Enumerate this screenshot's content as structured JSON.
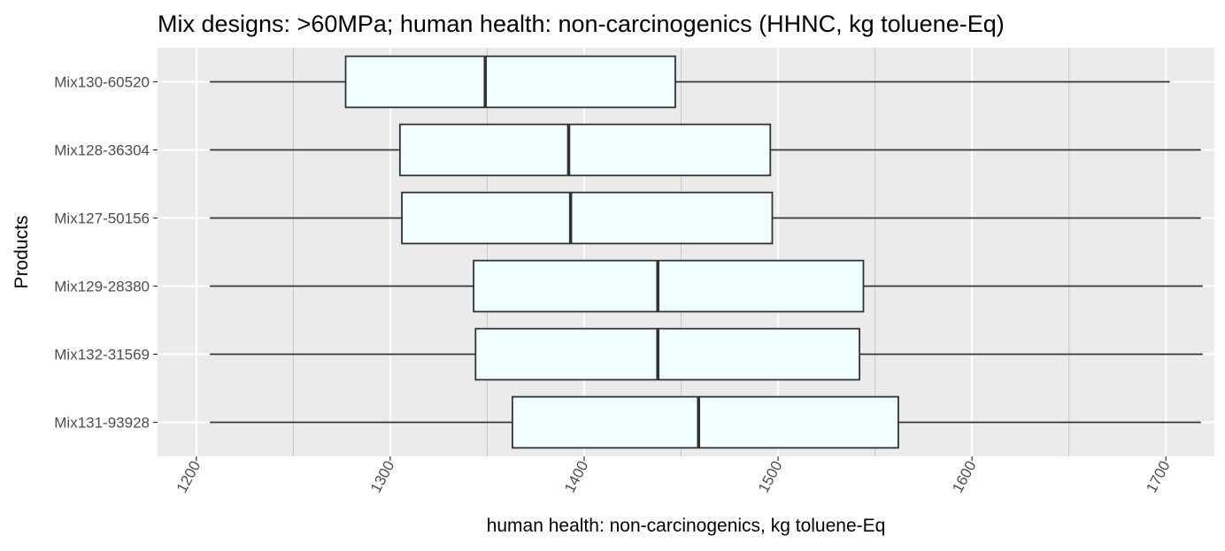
{
  "chart_data": {
    "type": "boxplot",
    "orientation": "horizontal",
    "title": "Mix designs: >60MPa; human health: non-carcinogenics (HHNC, kg toluene-Eq)",
    "xlabel": "human health: non-carcinogenics, kg toluene-Eq",
    "ylabel": "Products",
    "xlim": [
      1180,
      1725
    ],
    "x_ticks": [
      1200,
      1300,
      1400,
      1500,
      1600,
      1700
    ],
    "x_tick_labels": [
      "1200",
      "1300",
      "1400",
      "1500",
      "1600",
      "1700"
    ],
    "x_tick_label_rotation": "vertical-ish (rotated ~-60°)",
    "grid": true,
    "legend": "none",
    "categories": [
      "Mix130-60520",
      "Mix128-36304",
      "Mix127-50156",
      "Mix129-28380",
      "Mix132-31569",
      "Mix131-93928"
    ],
    "boxes": [
      {
        "label": "Mix130-60520",
        "min": 1207,
        "q1": 1277,
        "median": 1349,
        "q3": 1447,
        "max": 1702
      },
      {
        "label": "Mix128-36304",
        "min": 1207,
        "q1": 1305,
        "median": 1392,
        "q3": 1496,
        "max": 1718
      },
      {
        "label": "Mix127-50156",
        "min": 1207,
        "q1": 1306,
        "median": 1393,
        "q3": 1497,
        "max": 1718
      },
      {
        "label": "Mix129-28380",
        "min": 1207,
        "q1": 1343,
        "median": 1438,
        "q3": 1544,
        "max": 1719
      },
      {
        "label": "Mix132-31569",
        "min": 1207,
        "q1": 1344,
        "median": 1438,
        "q3": 1542,
        "max": 1719
      },
      {
        "label": "Mix131-93928",
        "min": 1207,
        "q1": 1363,
        "median": 1459,
        "q3": 1562,
        "max": 1718
      }
    ],
    "colors": {
      "panel_background": "#ebebeb",
      "gridline": "#ffffff",
      "box_fill": "#f0ffff",
      "box_stroke": "#333333",
      "tick_label": "#4d4d4d"
    }
  }
}
